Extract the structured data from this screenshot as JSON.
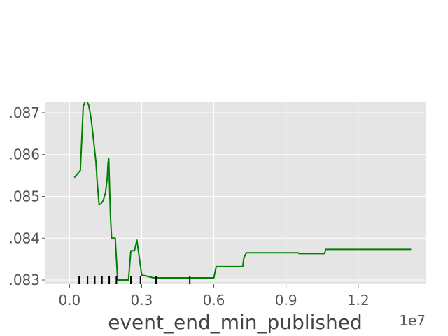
{
  "chart_data": {
    "type": "line",
    "title": "",
    "xlabel": "event_end_min_published",
    "ylabel": "",
    "x_offset_label": "1e7",
    "xlim": [
      -0.1,
      1.48
    ],
    "ylim": [
      0.0829,
      0.08725
    ],
    "x_ticks": [
      0.0,
      0.3,
      0.6,
      0.9,
      1.2
    ],
    "x_tick_labels": [
      "0.0",
      "0.3",
      "0.6",
      "0.9",
      "1.2"
    ],
    "y_ticks": [
      0.083,
      0.084,
      0.085,
      0.086,
      0.087
    ],
    "y_tick_labels": [
      ".083",
      ".084",
      ".085",
      ".086",
      ".087"
    ],
    "grid": true,
    "background": "#e5e5e5",
    "grid_color": "#ffffff",
    "line_color": "#008000",
    "rug_color": "#000000",
    "rug_x": [
      0.04,
      0.075,
      0.105,
      0.135,
      0.165,
      0.195,
      0.255,
      0.295,
      0.36,
      0.5
    ],
    "series": [
      {
        "x": [
          0.02,
          0.045,
          0.057,
          0.065,
          0.073,
          0.08,
          0.09,
          0.1,
          0.11,
          0.115,
          0.123,
          0.13,
          0.14,
          0.15,
          0.157,
          0.16,
          0.163,
          0.17,
          0.175,
          0.18,
          0.19,
          0.2,
          0.215,
          0.225,
          0.235,
          0.245,
          0.25,
          0.255,
          0.26,
          0.27,
          0.28,
          0.3,
          0.35,
          0.45,
          0.55,
          0.6,
          0.605,
          0.61,
          0.62,
          0.7,
          0.72,
          0.725,
          0.735,
          0.8,
          0.9,
          0.95,
          0.955,
          1.0,
          1.05,
          1.06,
          1.065,
          1.1,
          1.2,
          1.3,
          1.42
        ],
        "y": [
          0.08545,
          0.08562,
          0.08715,
          0.08727,
          0.08727,
          0.08717,
          0.08685,
          0.08635,
          0.0858,
          0.08535,
          0.0848,
          0.08482,
          0.0849,
          0.0851,
          0.08545,
          0.0858,
          0.0859,
          0.08455,
          0.084,
          0.084,
          0.084,
          0.083,
          0.083,
          0.083,
          0.083,
          0.083,
          0.08335,
          0.0837,
          0.0837,
          0.0837,
          0.08395,
          0.08312,
          0.08305,
          0.08305,
          0.08305,
          0.08305,
          0.0832,
          0.08332,
          0.08332,
          0.08332,
          0.08332,
          0.08353,
          0.08365,
          0.08365,
          0.08365,
          0.08365,
          0.08363,
          0.08363,
          0.08363,
          0.08363,
          0.08373,
          0.08373,
          0.08373,
          0.08373,
          0.08373
        ]
      }
    ]
  }
}
